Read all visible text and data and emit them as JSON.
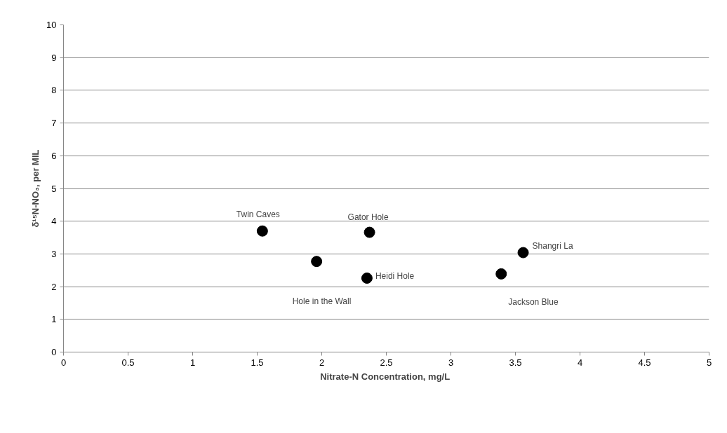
{
  "chart_data": {
    "type": "scatter",
    "xlabel": "Nitrate-N Concentration,  mg/L",
    "ylabel": "δ¹⁵N-NO₃, per MIL",
    "x": [
      1.54,
      1.96,
      2.37,
      2.35,
      3.39,
      3.56
    ],
    "series": [
      {
        "color": "#000000",
        "values": [
          3.7,
          2.77,
          3.66,
          2.26,
          2.39,
          3.04
        ]
      }
    ],
    "xlim": [
      0,
      5
    ],
    "xticks": [
      0,
      {
        "value": 0.5,
        "label": "0.5"
      },
      1,
      {
        "value": 1.5,
        "label": "1.5"
      },
      2,
      {
        "value": 2.5,
        "label": "2.5"
      },
      3,
      {
        "value": 3.5,
        "label": "3.5"
      },
      4,
      {
        "value": 4.5,
        "label": "4.5"
      },
      5
    ],
    "ylim": [
      0,
      10
    ],
    "yticks": [
      0,
      1,
      2,
      3,
      4,
      5,
      6,
      7,
      8,
      9,
      10
    ],
    "grid": "y",
    "marker": "circle",
    "annotations": [
      {
        "text": "Twin Caves",
        "x": 1.54,
        "y": 3.7
      },
      "Hole in the Wall",
      {
        "text": "Gator Hole",
        "x": 2.37,
        "y": 3.66
      },
      {
        "text": "Heidi Hole",
        "x": 2.35,
        "y": 2.26
      },
      {
        "text": "Jackson Blue",
        "x": 3.39,
        "y": 2.39
      },
      {
        "text": "Shangri La",
        "x": 3.56,
        "y": 3.04
      }
    ]
  }
}
